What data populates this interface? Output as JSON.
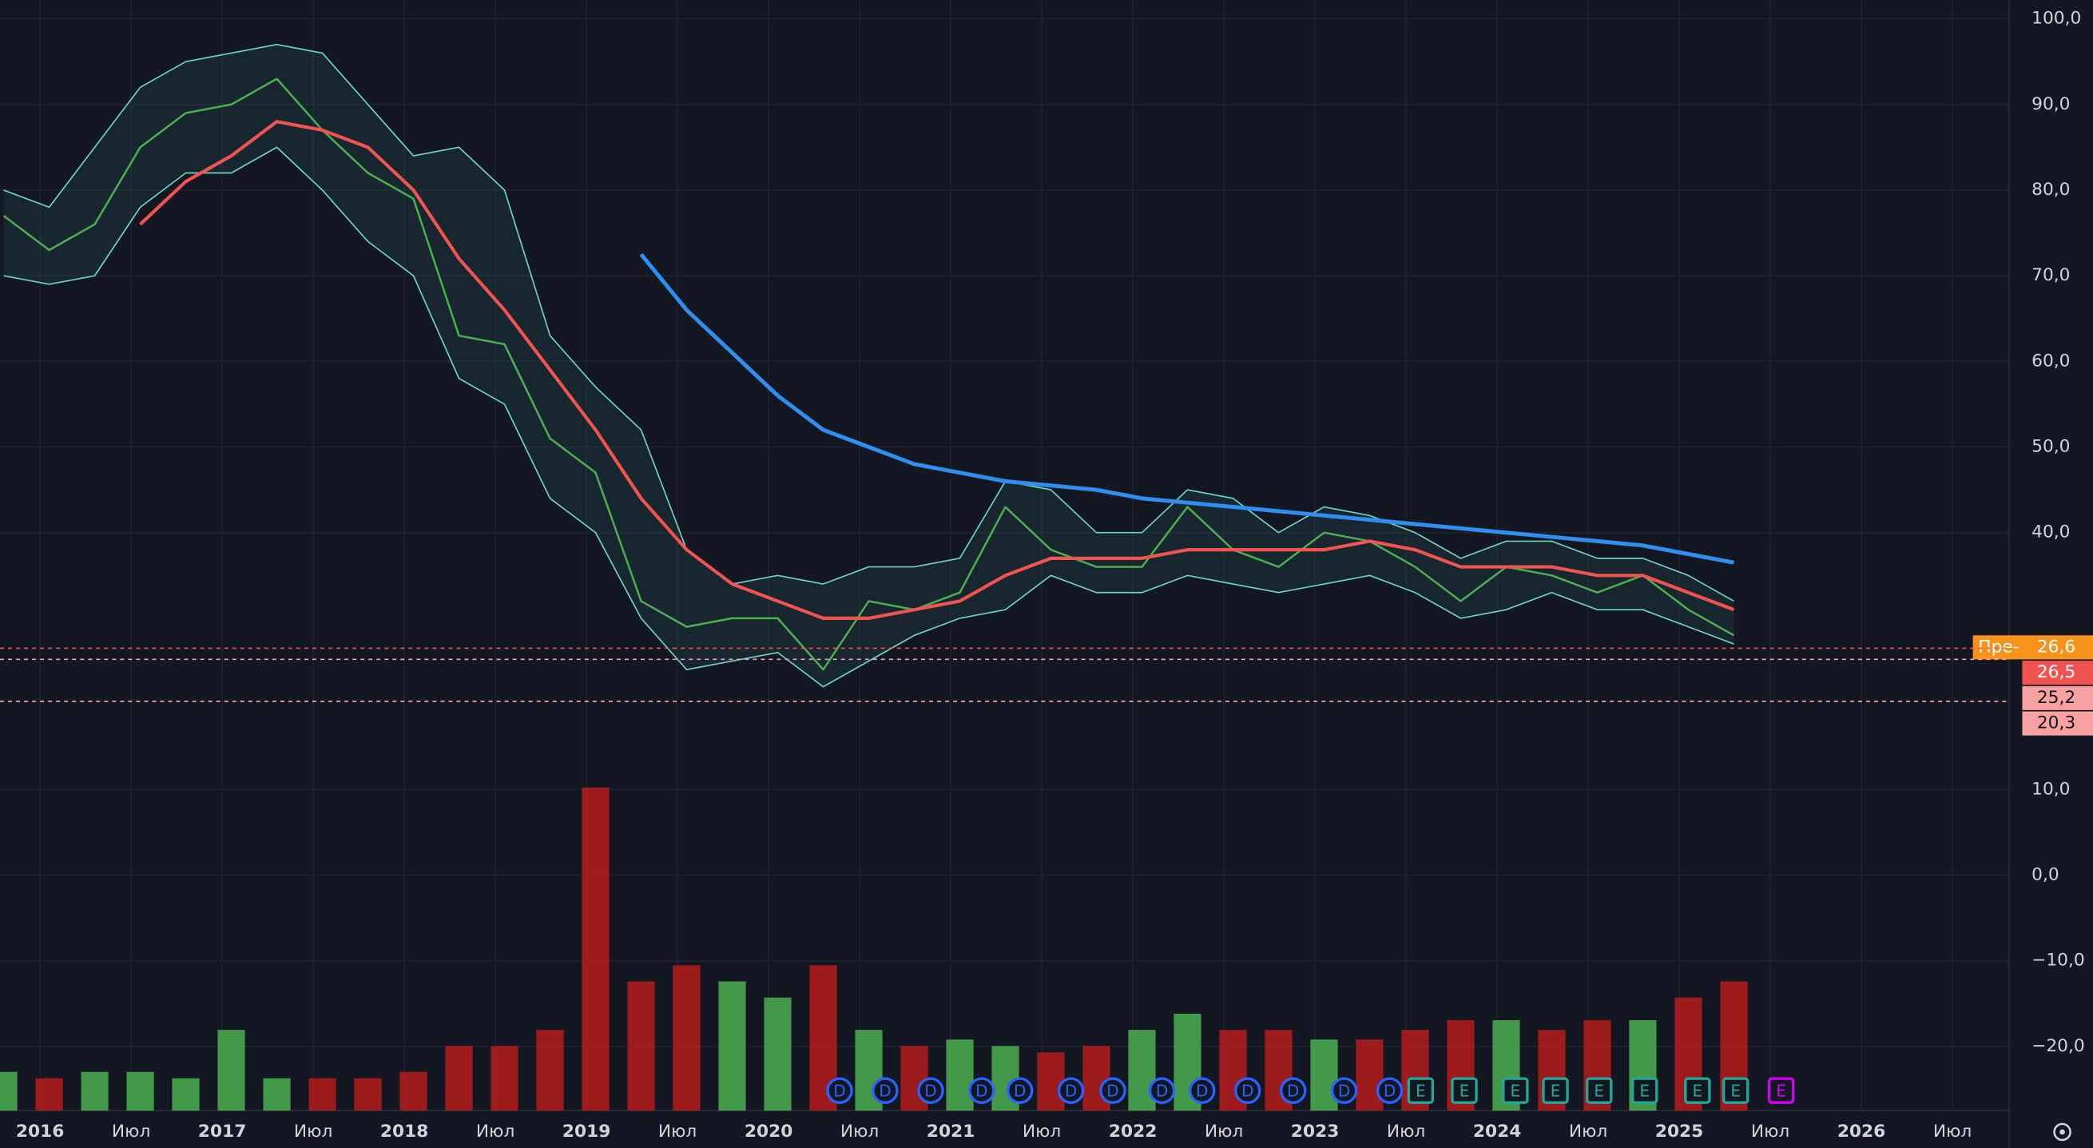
{
  "chart_data": {
    "type": "line",
    "x": [
      2015.8,
      2016.05,
      2016.3,
      2016.55,
      2016.8,
      2017.05,
      2017.3,
      2017.55,
      2017.8,
      2018.05,
      2018.3,
      2018.55,
      2018.8,
      2019.05,
      2019.3,
      2019.55,
      2019.8,
      2020.05,
      2020.3,
      2020.55,
      2020.8,
      2021.05,
      2021.3,
      2021.55,
      2021.8,
      2022.05,
      2022.3,
      2022.55,
      2022.8,
      2023.05,
      2023.3,
      2023.55,
      2023.8,
      2024.05,
      2024.3,
      2024.55,
      2024.8,
      2025.05,
      2025.3
    ],
    "series": [
      {
        "name": "Price",
        "color": "#4caf50",
        "width": 1.5,
        "values": [
          77,
          73,
          76,
          85,
          89,
          90,
          93,
          87,
          82,
          79,
          63,
          62,
          51,
          47,
          32,
          29,
          30,
          30,
          24,
          32,
          31,
          33,
          43,
          38,
          36,
          36,
          43,
          38,
          36,
          40,
          39,
          36,
          32,
          36,
          35,
          33,
          35,
          31,
          28
        ]
      },
      {
        "name": "BB Upper",
        "color": "#6fd3c4",
        "width": 1,
        "values": [
          80,
          78,
          85,
          92,
          95,
          96,
          97,
          96,
          90,
          84,
          85,
          80,
          63,
          57,
          52,
          38,
          34,
          35,
          34,
          36,
          36,
          37,
          46,
          45,
          40,
          40,
          45,
          44,
          40,
          43,
          42,
          40,
          37,
          39,
          39,
          37,
          37,
          35,
          32
        ]
      },
      {
        "name": "BB Lower",
        "color": "#6fd3c4",
        "width": 1,
        "values": [
          70,
          69,
          70,
          78,
          82,
          82,
          85,
          80,
          74,
          70,
          58,
          55,
          44,
          40,
          30,
          24,
          25,
          26,
          22,
          25,
          28,
          30,
          31,
          35,
          33,
          33,
          35,
          34,
          33,
          34,
          35,
          33,
          30,
          31,
          33,
          31,
          31,
          29,
          27
        ]
      },
      {
        "name": "MA",
        "color": "#f05350",
        "width": 2.5,
        "values": [
          null,
          null,
          null,
          76,
          81,
          84,
          88,
          87,
          85,
          80,
          72,
          66,
          59,
          52,
          44,
          38,
          34,
          32,
          30,
          30,
          31,
          32,
          35,
          37,
          37,
          37,
          38,
          38,
          38,
          38,
          39,
          38,
          36,
          36,
          36,
          35,
          35,
          33,
          31
        ]
      },
      {
        "name": "MA 200",
        "color": "#2f8ff0",
        "width": 3,
        "values": [
          null,
          null,
          null,
          null,
          null,
          null,
          null,
          null,
          null,
          null,
          null,
          null,
          null,
          null,
          72.5,
          66,
          61,
          56,
          52,
          50,
          48,
          47,
          46,
          45.5,
          45,
          44,
          43.5,
          43,
          42.5,
          42,
          41.5,
          41,
          40.5,
          40,
          39.5,
          39,
          38.5,
          37.5,
          36.5
        ]
      }
    ],
    "band_fill": "rgba(60,150,150,0.12)",
    "volume": {
      "values": [
        12,
        10,
        12,
        12,
        10,
        25,
        10,
        10,
        10,
        12,
        20,
        20,
        25,
        100,
        40,
        45,
        40,
        35,
        45,
        25,
        20,
        22,
        20,
        18,
        20,
        25,
        30,
        25,
        25,
        22,
        22,
        25,
        28,
        28,
        25,
        28,
        28,
        35,
        40
      ],
      "ylim": [
        0,
        100
      ],
      "up_color": "#4caf50",
      "down_color": "#b71c1c"
    },
    "xlim": [
      2015.78,
      2026.81
    ],
    "ylim": [
      -27.5,
      102.2
    ],
    "xticks": [
      {
        "value": 2016,
        "label": "2016"
      },
      {
        "value": 2016.5,
        "label": "Июл"
      },
      {
        "value": 2017,
        "label": "2017"
      },
      {
        "value": 2017.5,
        "label": "Июл"
      },
      {
        "value": 2018,
        "label": "2018"
      },
      {
        "value": 2018.5,
        "label": "Июл"
      },
      {
        "value": 2019,
        "label": "2019"
      },
      {
        "value": 2019.5,
        "label": "Июл"
      },
      {
        "value": 2020,
        "label": "2020"
      },
      {
        "value": 2020.5,
        "label": "Июл"
      },
      {
        "value": 2021,
        "label": "2021"
      },
      {
        "value": 2021.5,
        "label": "Июл"
      },
      {
        "value": 2022,
        "label": "2022"
      },
      {
        "value": 2022.5,
        "label": "Июл"
      },
      {
        "value": 2023,
        "label": "2023"
      },
      {
        "value": 2023.5,
        "label": "Июл"
      },
      {
        "value": 2024,
        "label": "2024"
      },
      {
        "value": 2024.5,
        "label": "Июл"
      },
      {
        "value": 2025,
        "label": "2025"
      },
      {
        "value": 2025.5,
        "label": "Июл"
      },
      {
        "value": 2026,
        "label": "2026"
      },
      {
        "value": 2026.5,
        "label": "Июл"
      }
    ],
    "yticks": [
      {
        "value": 100,
        "label": "100,0"
      },
      {
        "value": 90,
        "label": "90,0"
      },
      {
        "value": 80,
        "label": "80,0"
      },
      {
        "value": 70,
        "label": "70,0"
      },
      {
        "value": 60,
        "label": "60,0"
      },
      {
        "value": 50,
        "label": "50,0"
      },
      {
        "value": 40,
        "label": "40,0"
      },
      {
        "value": 10,
        "label": "10,0"
      },
      {
        "value": 0,
        "label": "0,0"
      },
      {
        "value": -10,
        "label": "−10,0"
      },
      {
        "value": -20,
        "label": "−20,0"
      }
    ],
    "grid": true,
    "price_labels": [
      {
        "name": "Пре-",
        "value": 26.6,
        "label": "26,6",
        "color": "#f7931a"
      },
      {
        "value": 26.5,
        "label": "26,5",
        "color": "#f05350"
      },
      {
        "value": 25.2,
        "label": "25,2",
        "color": "#f7a1a1"
      },
      {
        "value": 20.3,
        "label": "20,3",
        "color": "#f7a1a1"
      }
    ],
    "events": [
      {
        "label": "D",
        "x": 2020.39,
        "color": "#2962ff"
      },
      {
        "label": "D",
        "x": 2020.64,
        "color": "#2962ff"
      },
      {
        "label": "D",
        "x": 2020.89,
        "color": "#2962ff"
      },
      {
        "label": "D",
        "x": 2021.17,
        "color": "#2962ff"
      },
      {
        "label": "D",
        "x": 2021.38,
        "color": "#2962ff"
      },
      {
        "label": "D",
        "x": 2021.66,
        "color": "#2962ff"
      },
      {
        "label": "D",
        "x": 2021.89,
        "color": "#2962ff"
      },
      {
        "label": "D",
        "x": 2022.16,
        "color": "#2962ff"
      },
      {
        "label": "D",
        "x": 2022.38,
        "color": "#2962ff"
      },
      {
        "label": "D",
        "x": 2022.63,
        "color": "#2962ff"
      },
      {
        "label": "D",
        "x": 2022.88,
        "color": "#2962ff"
      },
      {
        "label": "D",
        "x": 2023.16,
        "color": "#2962ff"
      },
      {
        "label": "D",
        "x": 2023.41,
        "color": "#2962ff"
      },
      {
        "label": "E",
        "x": 2023.58,
        "color": "#26a69a"
      },
      {
        "label": "E",
        "x": 2023.82,
        "color": "#26a69a"
      },
      {
        "label": "E",
        "x": 2024.1,
        "color": "#26a69a"
      },
      {
        "label": "E",
        "x": 2024.32,
        "color": "#26a69a"
      },
      {
        "label": "E",
        "x": 2024.56,
        "color": "#26a69a"
      },
      {
        "label": "E",
        "x": 2024.81,
        "color": "#26a69a"
      },
      {
        "label": "E",
        "x": 2025.1,
        "color": "#26a69a"
      },
      {
        "label": "E",
        "x": 2025.31,
        "color": "#26a69a"
      },
      {
        "label": "E",
        "x": 2025.56,
        "color": "#d500f9"
      }
    ]
  }
}
